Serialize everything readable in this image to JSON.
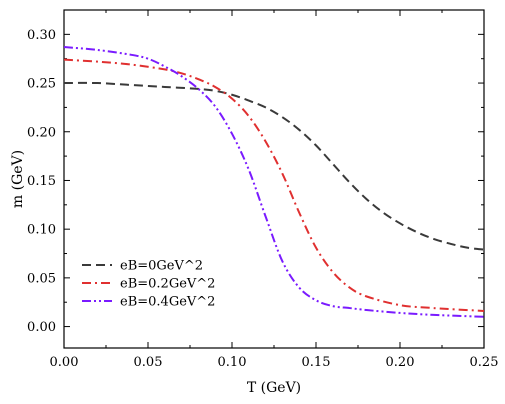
{
  "chart_data": {
    "type": "line",
    "title": "",
    "xlabel": "T (GeV)",
    "ylabel": "m (GeV)",
    "xlim": [
      0.0,
      0.25
    ],
    "ylim": [
      -0.022,
      0.325
    ],
    "x_ticks": [
      0.0,
      0.05,
      0.1,
      0.15,
      0.2,
      0.25
    ],
    "x_tick_labels": [
      "0.00",
      "0.05",
      "0.10",
      "0.15",
      "0.20",
      "0.25"
    ],
    "y_ticks": [
      0.0,
      0.05,
      0.1,
      0.15,
      0.2,
      0.25,
      0.3
    ],
    "y_tick_labels": [
      "0.00",
      "0.05",
      "0.10",
      "0.15",
      "0.20",
      "0.25",
      "0.30"
    ],
    "grid": false,
    "legend_position": "bottom-left",
    "series": [
      {
        "name": "eB=0GeV^2",
        "color": "#3a3a3a",
        "dash": "dash",
        "x": [
          0.0,
          0.02,
          0.04,
          0.06,
          0.08,
          0.09,
          0.1,
          0.11,
          0.12,
          0.13,
          0.14,
          0.15,
          0.16,
          0.17,
          0.18,
          0.19,
          0.2,
          0.21,
          0.22,
          0.23,
          0.24,
          0.25
        ],
        "y": [
          0.25,
          0.25,
          0.248,
          0.246,
          0.244,
          0.242,
          0.238,
          0.232,
          0.225,
          0.215,
          0.202,
          0.186,
          0.167,
          0.148,
          0.131,
          0.117,
          0.106,
          0.097,
          0.09,
          0.085,
          0.081,
          0.079
        ]
      },
      {
        "name": "eB=0.2GeV^2",
        "color": "#e03030",
        "dash": "dashdot",
        "x": [
          0.0,
          0.02,
          0.04,
          0.06,
          0.07,
          0.08,
          0.09,
          0.1,
          0.11,
          0.12,
          0.13,
          0.14,
          0.15,
          0.16,
          0.17,
          0.18,
          0.2,
          0.22,
          0.25
        ],
        "y": [
          0.274,
          0.272,
          0.269,
          0.264,
          0.26,
          0.254,
          0.246,
          0.234,
          0.216,
          0.19,
          0.157,
          0.117,
          0.081,
          0.056,
          0.04,
          0.031,
          0.022,
          0.019,
          0.016
        ]
      },
      {
        "name": "eB=0.4GeV^2",
        "color": "#7a1bff",
        "dash": "dashdotdot",
        "x": [
          0.0,
          0.02,
          0.04,
          0.05,
          0.06,
          0.07,
          0.08,
          0.09,
          0.1,
          0.11,
          0.12,
          0.13,
          0.14,
          0.15,
          0.16,
          0.17,
          0.18,
          0.2,
          0.22,
          0.25
        ],
        "y": [
          0.287,
          0.284,
          0.279,
          0.275,
          0.267,
          0.257,
          0.244,
          0.226,
          0.198,
          0.161,
          0.113,
          0.067,
          0.04,
          0.027,
          0.021,
          0.019,
          0.017,
          0.014,
          0.012,
          0.01
        ]
      }
    ]
  }
}
